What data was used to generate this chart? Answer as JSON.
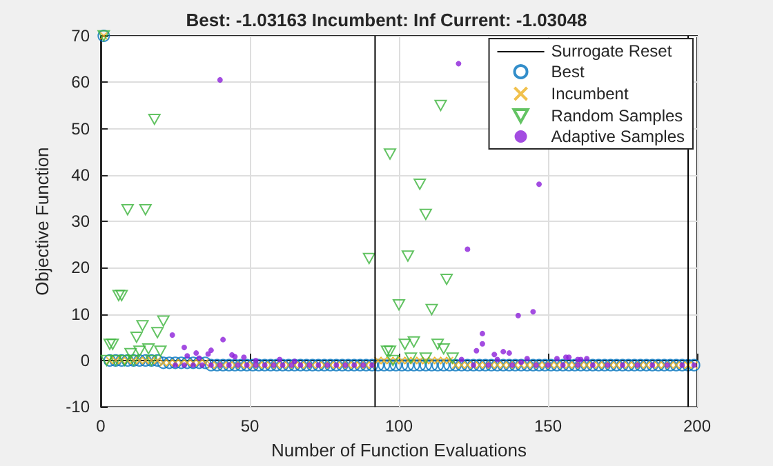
{
  "chart_data": {
    "type": "scatter",
    "title": "Best: -1.03163 Incumbent: Inf Current: -1.03048",
    "xlabel": "Number of Function Evaluations",
    "ylabel": "Objective Function",
    "xlim": [
      0,
      200
    ],
    "xticks": [
      0,
      50,
      100,
      150,
      200
    ],
    "ylim": [
      -10,
      70
    ],
    "yticks": [
      -10,
      0,
      10,
      20,
      30,
      40,
      50,
      60,
      70
    ],
    "grid": true,
    "legend": "top right",
    "x": [
      1,
      3,
      5,
      7,
      9,
      11,
      13,
      15,
      17,
      19,
      21,
      23,
      25,
      27,
      29,
      31,
      33,
      35,
      37,
      39,
      41,
      43,
      45,
      47,
      49,
      51,
      53,
      55,
      57,
      59,
      61,
      63,
      65,
      67,
      69,
      71,
      73,
      75,
      77,
      79,
      81,
      83,
      85,
      87,
      89,
      91,
      93,
      95,
      97,
      99,
      101,
      103,
      105,
      107,
      109,
      111,
      113,
      115,
      117,
      119,
      121,
      123,
      125,
      127,
      129,
      131,
      133,
      135,
      137,
      139,
      141,
      143,
      145,
      147,
      149,
      151,
      153,
      155,
      157,
      159,
      161,
      163,
      165,
      167,
      169,
      171,
      173,
      175,
      177,
      179,
      181,
      183,
      185,
      187,
      189,
      191,
      193,
      195,
      197,
      199
    ],
    "series": [
      {
        "name": "Surrogate Reset",
        "type": "line",
        "color": "#000000",
        "marker": "none",
        "line_style": "solid",
        "x": [
          92,
          92
        ],
        "values": [
          -10,
          70
        ]
      },
      {
        "type": "line",
        "color": "#000000",
        "marker": "none",
        "line_style": "solid",
        "x": [
          197,
          197
        ],
        "values": [
          -10,
          70
        ]
      },
      {
        "name": "Best",
        "color": "#0072bd",
        "marker": "circle",
        "values": [
          70,
          0,
          0,
          0,
          0,
          0,
          0,
          0,
          0,
          0,
          -0.5,
          -0.5,
          -0.5,
          -0.5,
          -0.5,
          -0.5,
          -0.5,
          -0.5,
          -1,
          -1,
          -1,
          -1,
          -1,
          -1,
          -1,
          -1,
          -1,
          -1,
          -1,
          -1,
          -1,
          -1,
          -1,
          -1,
          -1,
          -1,
          -1,
          -1,
          -1,
          -1,
          -1,
          -1,
          -1,
          -1,
          -1,
          -1,
          -1,
          -1,
          -1,
          -1,
          -1,
          -1,
          -1,
          -1,
          -1,
          -1,
          -1,
          -1,
          -1,
          -1,
          -1,
          -1,
          -1,
          -1,
          -1,
          -1,
          -1,
          -1,
          -1,
          -1,
          -1,
          -1,
          -1,
          -1,
          -1,
          -1,
          -1,
          -1,
          -1,
          -1,
          -1,
          -1,
          -1,
          -1,
          -1,
          -1,
          -1,
          -1,
          -1,
          -1,
          -1,
          -1,
          -1,
          -1,
          -1,
          -1,
          -1,
          -1,
          -1,
          -1
        ]
      },
      {
        "name": "Incumbent",
        "color": "#edb120",
        "marker": "cross",
        "values": [
          70,
          0,
          0,
          0,
          0,
          0,
          0,
          0,
          0,
          0,
          -0.5,
          -0.5,
          -0.5,
          -0.5,
          -0.5,
          -0.5,
          -0.5,
          -0.5,
          -1,
          -1,
          -1,
          -1,
          -1,
          -1,
          -1,
          -1,
          -1,
          -1,
          -1,
          -1,
          -1,
          -1,
          -1,
          -1,
          -1,
          -1,
          -1,
          -1,
          -1,
          -1,
          -1,
          -1,
          -1,
          -1,
          -1,
          -1,
          0,
          0,
          0,
          0,
          0,
          0,
          0,
          0,
          0,
          0,
          0,
          0,
          0,
          -1,
          -1,
          -1,
          -1,
          -1,
          -1,
          -1,
          -1,
          -1,
          -1,
          -1,
          -1,
          -1,
          -1,
          -1,
          -1,
          -1,
          -1,
          -1,
          -1,
          -1,
          -1,
          -1,
          -1,
          -1,
          -1,
          -1,
          -1,
          -1,
          -1,
          -1,
          -1,
          -1,
          -1,
          -1,
          -1,
          -1,
          -1,
          -1,
          -1,
          -1
        ]
      },
      {
        "name": "Random Samples",
        "color": "#3cb43c",
        "marker": "triangle",
        "x": [
          1,
          2,
          3,
          4,
          5,
          6,
          7,
          8,
          9,
          10,
          11,
          12,
          13,
          14,
          15,
          16,
          17,
          18,
          19,
          20,
          21,
          90,
          96,
          97,
          97,
          98,
          100,
          102,
          103,
          104,
          105,
          107,
          109,
          109,
          111,
          113,
          114,
          115,
          116,
          118
        ],
        "values": [
          70,
          0,
          3.5,
          3.5,
          0,
          14,
          14,
          0,
          32.5,
          1.5,
          0,
          5,
          2,
          7.5,
          32.5,
          2.5,
          0,
          52,
          6,
          2,
          8.5,
          22,
          2,
          44.5,
          2,
          0,
          12,
          3.5,
          22.5,
          0.5,
          4,
          38,
          31.5,
          0.5,
          11,
          3.5,
          55,
          2.5,
          17.5,
          0.5
        ]
      },
      {
        "name": "Adaptive Samples",
        "color": "#8c1fd9",
        "marker": "dot",
        "x": [
          40,
          24,
          28,
          29,
          32,
          33,
          36,
          37,
          41,
          44,
          45,
          48,
          52,
          60,
          65,
          120,
          147,
          123,
          145,
          140,
          128,
          128,
          126,
          132,
          133,
          135,
          137,
          143,
          153,
          156,
          157,
          160,
          161,
          163,
          121,
          141,
          25,
          28,
          31,
          34,
          37,
          40,
          43,
          46,
          49,
          52,
          55,
          58,
          61,
          64,
          67,
          70,
          73,
          76,
          79,
          82,
          85,
          88,
          91,
          125,
          130,
          138,
          146,
          150,
          155,
          160,
          165,
          170,
          175,
          180,
          185,
          190,
          195,
          199
        ],
        "values": [
          60.5,
          5.5,
          2.8,
          1,
          1.6,
          0.5,
          1.4,
          2.2,
          4.5,
          1.2,
          0.8,
          0.7,
          0,
          0.2,
          -0.2,
          64,
          38,
          24,
          10.5,
          9.7,
          5.8,
          3.6,
          2.1,
          1.3,
          0.2,
          1.9,
          1.6,
          0.4,
          0.4,
          0.7,
          0.7,
          0.2,
          0.2,
          0.4,
          0.2,
          -0.4,
          -1,
          -1,
          -1,
          -1,
          -1,
          -1,
          -1,
          -1,
          -1,
          -1,
          -1,
          -1,
          -1,
          -1,
          -1,
          -1,
          -1,
          -1,
          -1,
          -1,
          -1,
          -1,
          -1,
          -1,
          -1,
          -1,
          -1,
          -1,
          -1,
          -1,
          -1,
          -1,
          -1,
          -1,
          -1,
          -1,
          -1,
          -1
        ]
      }
    ]
  }
}
